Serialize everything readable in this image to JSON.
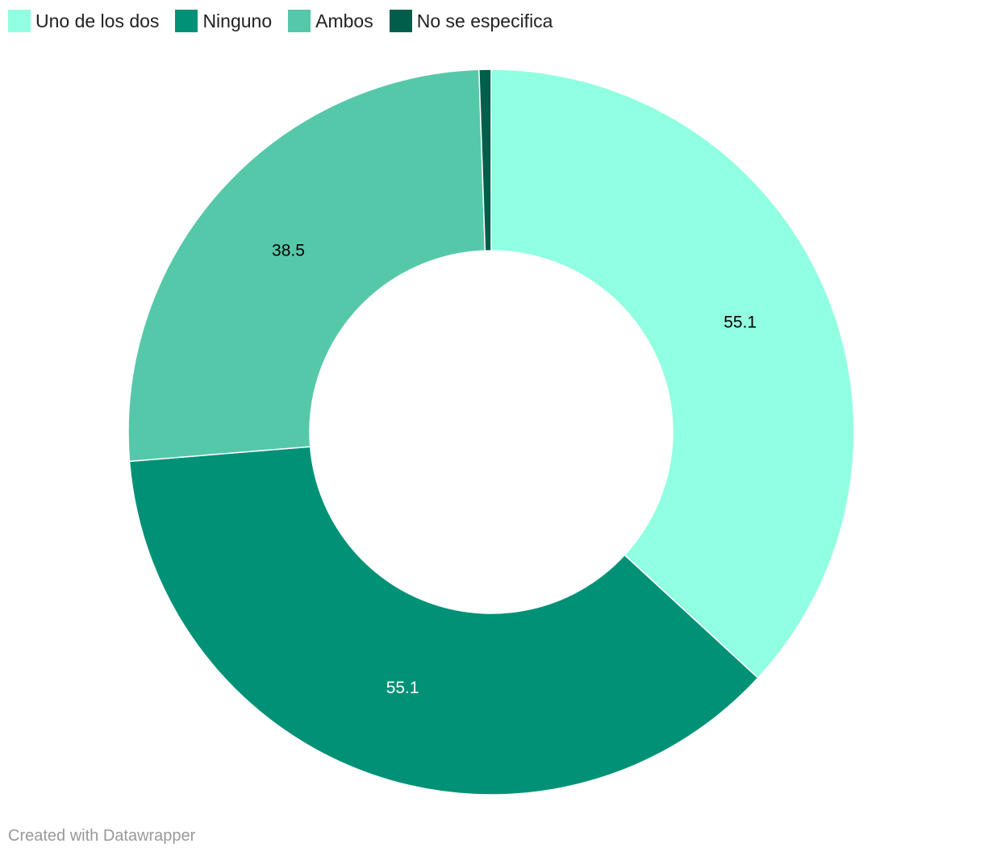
{
  "chart_data": {
    "type": "donut",
    "categories": [
      "Uno de los dos",
      "Ninguno",
      "Ambos",
      "No se especifica"
    ],
    "values": [
      55.1,
      55.1,
      38.5,
      0.8
    ],
    "colors": [
      "#91ffe1",
      "#009176",
      "#56c8aa",
      "#005e4b"
    ],
    "value_labels": [
      "55.1",
      "55.1",
      "38.5",
      null
    ],
    "footer": "Created with Datawrapper"
  }
}
